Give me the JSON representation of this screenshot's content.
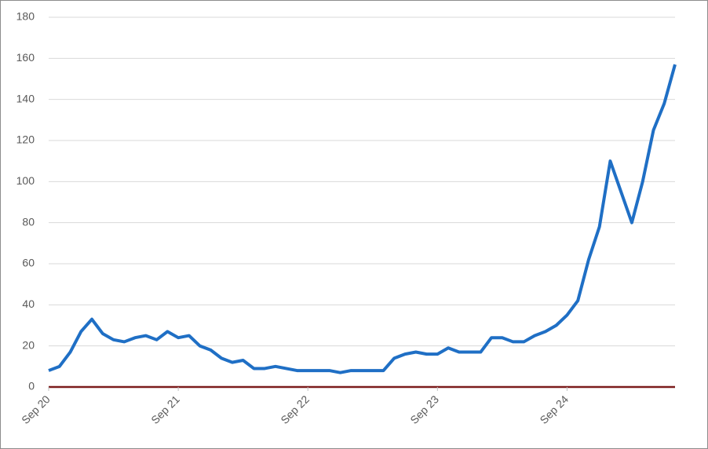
{
  "chart_data": {
    "type": "line",
    "categories": [
      "Sep 20",
      null,
      null,
      null,
      null,
      null,
      null,
      null,
      null,
      null,
      null,
      null,
      "Sep 21",
      null,
      null,
      null,
      null,
      null,
      null,
      null,
      null,
      null,
      null,
      null,
      "Sep 22",
      null,
      null,
      null,
      null,
      null,
      null,
      null,
      null,
      null,
      null,
      null,
      "Sep 23",
      null,
      null,
      null,
      null,
      null,
      null,
      null,
      null,
      null,
      null,
      null,
      "Sep 24",
      null,
      null,
      null,
      null,
      null,
      null,
      null,
      null,
      null,
      null
    ],
    "series": [
      {
        "color": "#1f6fc5",
        "values": [
          8,
          10,
          17,
          27,
          33,
          26,
          23,
          22,
          24,
          25,
          23,
          27,
          24,
          25,
          20,
          18,
          14,
          12,
          13,
          9,
          9,
          10,
          9,
          8,
          8,
          8,
          8,
          7,
          8,
          8,
          8,
          8,
          14,
          16,
          17,
          16,
          16,
          19,
          17,
          17,
          17,
          24,
          24,
          22,
          22,
          25,
          27,
          30,
          35,
          42,
          62,
          78,
          110,
          95,
          80,
          100,
          125,
          138,
          157
        ]
      }
    ],
    "ylim": [
      0,
      180
    ],
    "yticks": [
      0,
      20,
      40,
      60,
      80,
      100,
      120,
      140,
      160,
      180
    ],
    "grid": true,
    "axis_color": "#7b1c1c"
  }
}
